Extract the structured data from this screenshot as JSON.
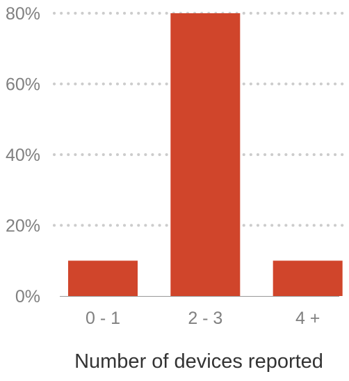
{
  "chart_data": {
    "type": "bar",
    "categories": [
      "0 - 1",
      "2 - 3",
      "4 +"
    ],
    "values": [
      10,
      80,
      10
    ],
    "xlabel": "Number of devices reported",
    "ylabel": "",
    "ylim": [
      0,
      80
    ],
    "yticks": [
      0,
      20,
      40,
      60,
      80
    ],
    "ytick_labels": [
      "0%",
      "20%",
      "40%",
      "60%",
      "80%"
    ],
    "grid": true,
    "bar_color": "#d0452b",
    "grid_color": "#cccccc",
    "label_color": "#808080",
    "title_color": "#333333"
  }
}
